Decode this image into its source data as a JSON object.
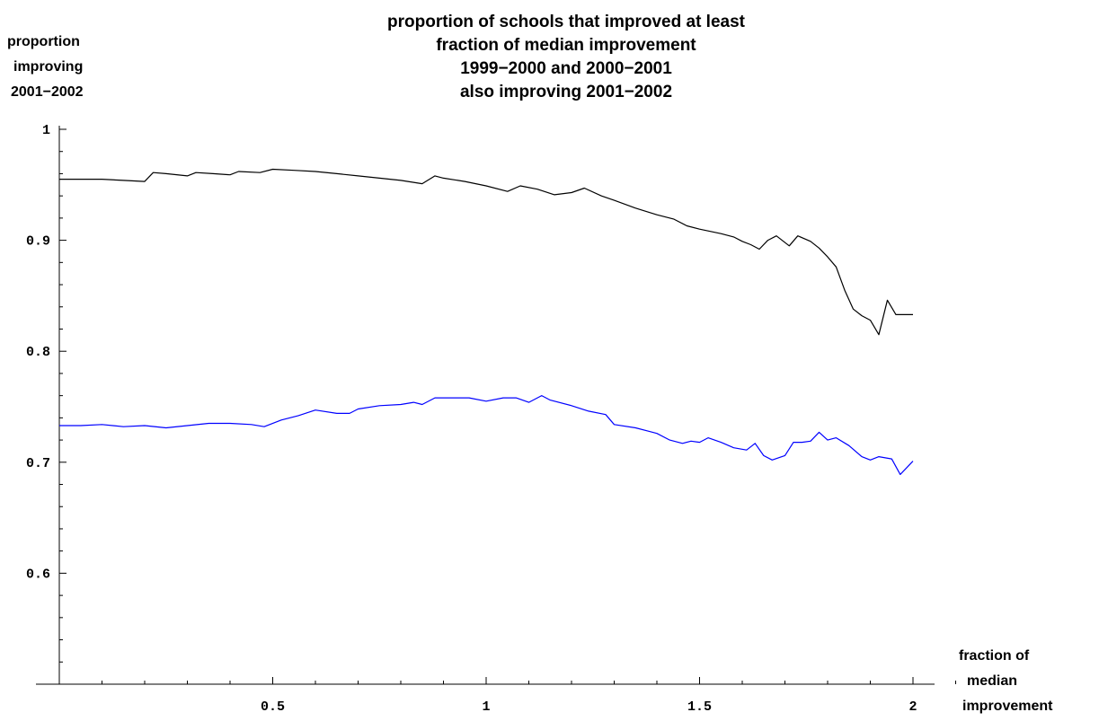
{
  "chart_data": {
    "type": "line",
    "title_lines": [
      "proportion of schools that improved at least",
      "fraction of median improvement",
      "1999−2000 and 2000−2001",
      "also improving 2001−2002"
    ],
    "ylabel_lines": [
      "proportion",
      "improving",
      "2001−2002"
    ],
    "xlabel_lines": [
      "fraction of",
      "median",
      "improvement"
    ],
    "xlim": [
      0,
      2.1
    ],
    "ylim": [
      0.5,
      1.0
    ],
    "x_ticks": [
      {
        "value": 0.5,
        "label": "0.5"
      },
      {
        "value": 1,
        "label": "1"
      },
      {
        "value": 1.5,
        "label": "1.5"
      },
      {
        "value": 2,
        "label": "2"
      }
    ],
    "y_ticks": [
      {
        "value": 1.0,
        "label": "1"
      },
      {
        "value": 0.9,
        "label": "0.9"
      },
      {
        "value": 0.8,
        "label": "0.8"
      },
      {
        "value": 0.7,
        "label": "0.7"
      },
      {
        "value": 0.6,
        "label": "0.6"
      }
    ],
    "grid": false,
    "series": [
      {
        "color": "#000000",
        "points": [
          [
            0.0,
            0.955
          ],
          [
            0.05,
            0.955
          ],
          [
            0.1,
            0.955
          ],
          [
            0.15,
            0.954
          ],
          [
            0.2,
            0.953
          ],
          [
            0.22,
            0.961
          ],
          [
            0.25,
            0.96
          ],
          [
            0.3,
            0.958
          ],
          [
            0.32,
            0.961
          ],
          [
            0.36,
            0.96
          ],
          [
            0.4,
            0.959
          ],
          [
            0.42,
            0.962
          ],
          [
            0.47,
            0.961
          ],
          [
            0.5,
            0.964
          ],
          [
            0.55,
            0.963
          ],
          [
            0.6,
            0.962
          ],
          [
            0.65,
            0.96
          ],
          [
            0.7,
            0.958
          ],
          [
            0.75,
            0.956
          ],
          [
            0.8,
            0.954
          ],
          [
            0.85,
            0.951
          ],
          [
            0.88,
            0.958
          ],
          [
            0.9,
            0.956
          ],
          [
            0.95,
            0.953
          ],
          [
            1.0,
            0.949
          ],
          [
            1.05,
            0.944
          ],
          [
            1.08,
            0.949
          ],
          [
            1.12,
            0.946
          ],
          [
            1.16,
            0.941
          ],
          [
            1.2,
            0.943
          ],
          [
            1.23,
            0.947
          ],
          [
            1.27,
            0.94
          ],
          [
            1.3,
            0.936
          ],
          [
            1.35,
            0.929
          ],
          [
            1.4,
            0.923
          ],
          [
            1.44,
            0.919
          ],
          [
            1.47,
            0.913
          ],
          [
            1.5,
            0.91
          ],
          [
            1.55,
            0.906
          ],
          [
            1.58,
            0.903
          ],
          [
            1.6,
            0.899
          ],
          [
            1.62,
            0.896
          ],
          [
            1.64,
            0.892
          ],
          [
            1.66,
            0.9
          ],
          [
            1.68,
            0.904
          ],
          [
            1.71,
            0.895
          ],
          [
            1.73,
            0.904
          ],
          [
            1.76,
            0.899
          ],
          [
            1.78,
            0.893
          ],
          [
            1.8,
            0.885
          ],
          [
            1.82,
            0.876
          ],
          [
            1.84,
            0.855
          ],
          [
            1.86,
            0.838
          ],
          [
            1.88,
            0.832
          ],
          [
            1.9,
            0.828
          ],
          [
            1.92,
            0.815
          ],
          [
            1.94,
            0.846
          ],
          [
            1.96,
            0.833
          ],
          [
            1.98,
            0.833
          ],
          [
            2.0,
            0.833
          ]
        ]
      },
      {
        "color": "#0000ff",
        "points": [
          [
            0.0,
            0.733
          ],
          [
            0.05,
            0.733
          ],
          [
            0.1,
            0.734
          ],
          [
            0.15,
            0.732
          ],
          [
            0.2,
            0.733
          ],
          [
            0.25,
            0.731
          ],
          [
            0.3,
            0.733
          ],
          [
            0.35,
            0.735
          ],
          [
            0.4,
            0.735
          ],
          [
            0.45,
            0.734
          ],
          [
            0.48,
            0.732
          ],
          [
            0.52,
            0.738
          ],
          [
            0.56,
            0.742
          ],
          [
            0.6,
            0.747
          ],
          [
            0.65,
            0.744
          ],
          [
            0.68,
            0.744
          ],
          [
            0.7,
            0.748
          ],
          [
            0.75,
            0.751
          ],
          [
            0.8,
            0.752
          ],
          [
            0.83,
            0.754
          ],
          [
            0.85,
            0.752
          ],
          [
            0.88,
            0.758
          ],
          [
            0.92,
            0.758
          ],
          [
            0.96,
            0.758
          ],
          [
            1.0,
            0.755
          ],
          [
            1.04,
            0.758
          ],
          [
            1.07,
            0.758
          ],
          [
            1.1,
            0.754
          ],
          [
            1.13,
            0.76
          ],
          [
            1.15,
            0.756
          ],
          [
            1.2,
            0.751
          ],
          [
            1.24,
            0.746
          ],
          [
            1.28,
            0.743
          ],
          [
            1.3,
            0.734
          ],
          [
            1.35,
            0.731
          ],
          [
            1.38,
            0.728
          ],
          [
            1.4,
            0.726
          ],
          [
            1.43,
            0.72
          ],
          [
            1.46,
            0.717
          ],
          [
            1.48,
            0.719
          ],
          [
            1.5,
            0.718
          ],
          [
            1.52,
            0.722
          ],
          [
            1.55,
            0.718
          ],
          [
            1.58,
            0.713
          ],
          [
            1.61,
            0.711
          ],
          [
            1.63,
            0.717
          ],
          [
            1.65,
            0.706
          ],
          [
            1.67,
            0.702
          ],
          [
            1.7,
            0.706
          ],
          [
            1.72,
            0.718
          ],
          [
            1.74,
            0.718
          ],
          [
            1.76,
            0.719
          ],
          [
            1.78,
            0.727
          ],
          [
            1.8,
            0.72
          ],
          [
            1.82,
            0.722
          ],
          [
            1.85,
            0.715
          ],
          [
            1.88,
            0.705
          ],
          [
            1.9,
            0.702
          ],
          [
            1.92,
            0.705
          ],
          [
            1.95,
            0.703
          ],
          [
            1.97,
            0.689
          ],
          [
            2.0,
            0.701
          ]
        ]
      }
    ]
  }
}
